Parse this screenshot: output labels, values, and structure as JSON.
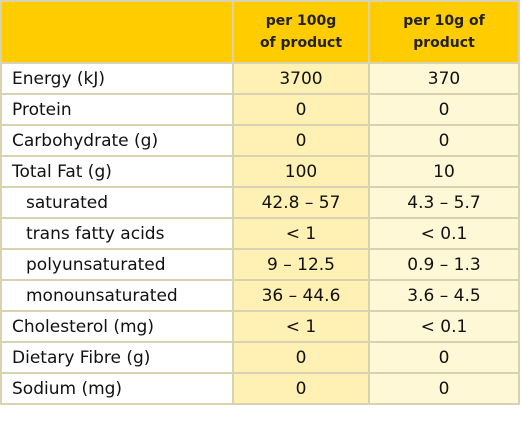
{
  "header": {
    "col1_line1": "per 100g",
    "col1_line2": "of product",
    "col2_line1": "per 10g of",
    "col2_line2": "product"
  },
  "rows": [
    {
      "label": "Energy (kJ)",
      "per100": "3700",
      "per10": "370",
      "sub": false
    },
    {
      "label": "Protein",
      "per100": "0",
      "per10": "0",
      "sub": false
    },
    {
      "label": "Carbohydrate (g)",
      "per100": "0",
      "per10": "0",
      "sub": false
    },
    {
      "label": "Total Fat (g)",
      "per100": "100",
      "per10": "10",
      "sub": false
    },
    {
      "label": "saturated",
      "per100": "42.8 – 57",
      "per10": "4.3 – 5.7",
      "sub": true
    },
    {
      "label": "trans fatty acids",
      "per100": "< 1",
      "per10": "< 0.1",
      "sub": true
    },
    {
      "label": "polyunsaturated",
      "per100": "9 – 12.5",
      "per10": "0.9 – 1.3",
      "sub": true
    },
    {
      "label": "monounsaturated",
      "per100": "36 – 44.6",
      "per10": "3.6 – 4.5",
      "sub": true
    },
    {
      "label": "Cholesterol (mg)",
      "per100": "< 1",
      "per10": "< 0.1",
      "sub": false
    },
    {
      "label": "Dietary Fibre (g)",
      "per100": "0",
      "per10": "0",
      "sub": false
    },
    {
      "label": "Sodium (mg)",
      "per100": "0",
      "per10": "0",
      "sub": false
    }
  ],
  "colors": {
    "header_bg": "#ffcc00",
    "col1_bg": "#fff0b3",
    "col2_bg": "#fff8d6",
    "border": "#d9d2b0"
  }
}
